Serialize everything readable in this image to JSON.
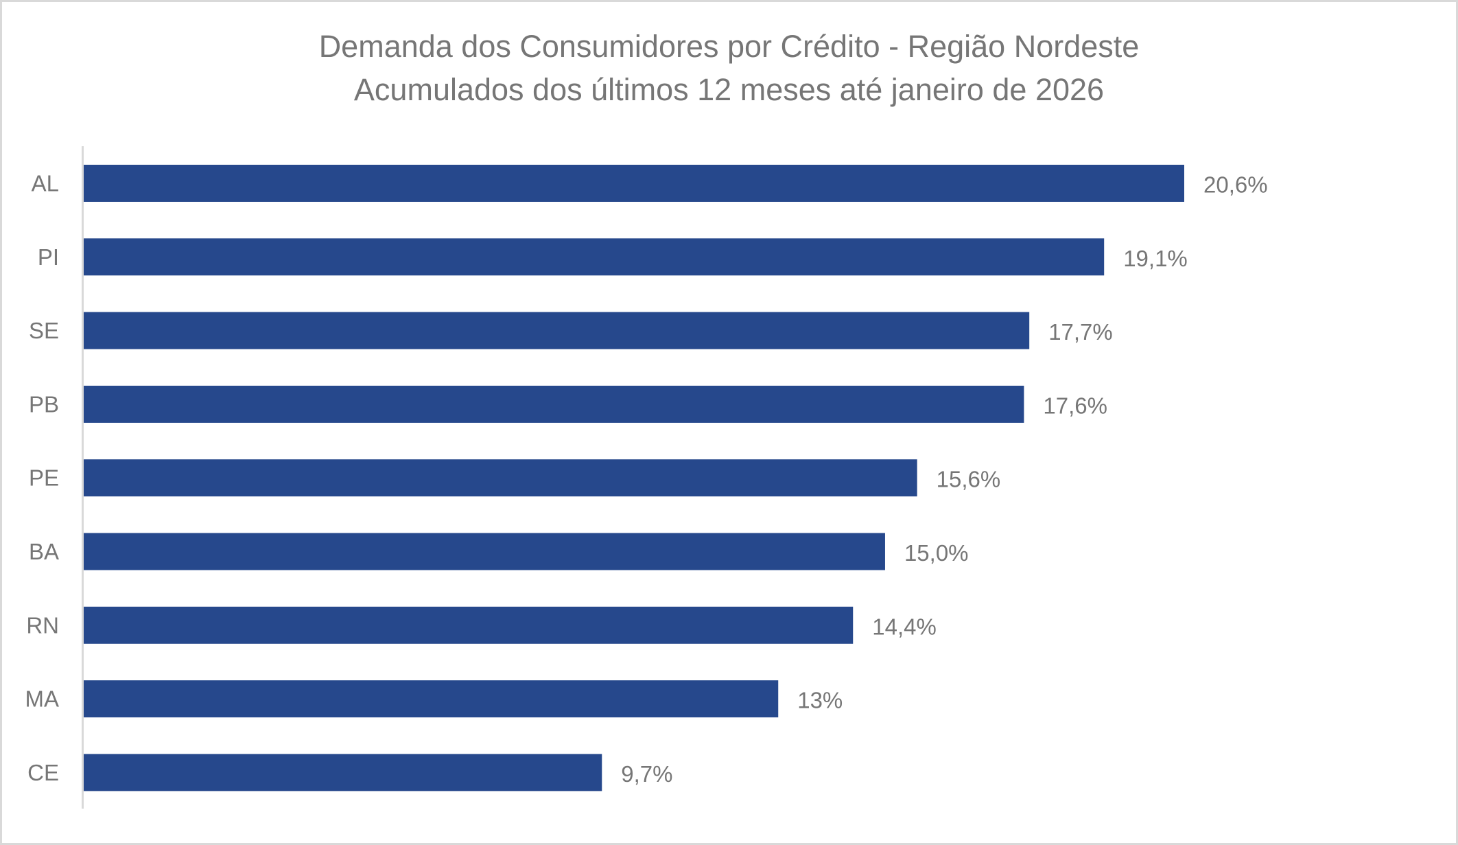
{
  "chart_data": {
    "type": "bar",
    "orientation": "horizontal",
    "title": "Demanda dos Consumidores por Crédito - Região Nordeste",
    "subtitle": "Acumulados dos últimos 12 meses até janeiro de 2026",
    "xlabel": "",
    "ylabel": "",
    "categories": [
      "AL",
      "PI",
      "SE",
      "PB",
      "PE",
      "BA",
      "RN",
      "MA",
      "CE"
    ],
    "values": [
      20.6,
      19.1,
      17.7,
      17.6,
      15.6,
      15.0,
      14.4,
      13.0,
      9.7
    ],
    "data_labels": [
      "20,6%",
      "19,1%",
      "17,7%",
      "17,6%",
      "15,6%",
      "15,0%",
      "14,4%",
      "13%",
      "9,7%"
    ],
    "xlim": [
      0,
      20.6
    ],
    "unit": "%",
    "grid": false,
    "legend": "none",
    "colors": {
      "bar": "#26488c",
      "text": "#767676",
      "axis": "#d9d9d9",
      "border": "#d9d9d9"
    }
  }
}
